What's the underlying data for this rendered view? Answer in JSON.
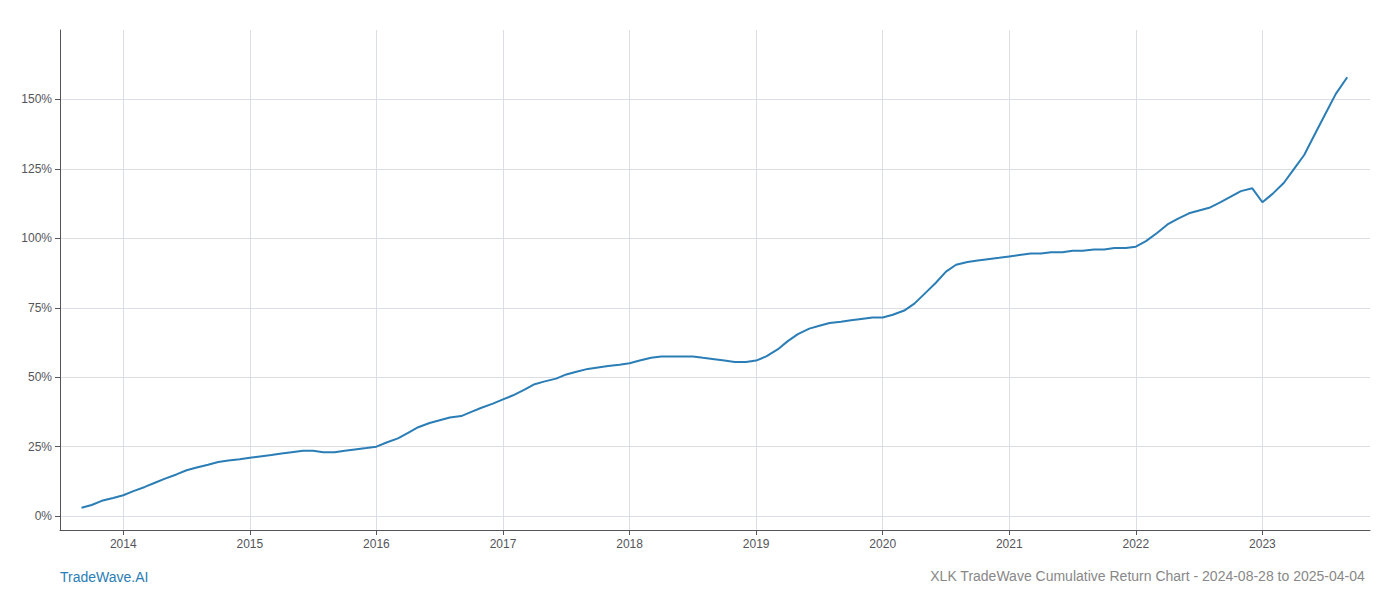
{
  "chart_data": {
    "type": "line",
    "title": "XLK TradeWave Cumulative Return Chart - 2024-08-28 to 2025-04-04",
    "annotations": [
      "TradeWave.AI"
    ],
    "color": "#2a7db5",
    "x": [
      2013.67,
      2013.75,
      2013.83,
      2013.92,
      2014.0,
      2014.08,
      2014.17,
      2014.25,
      2014.33,
      2014.42,
      2014.5,
      2014.58,
      2014.67,
      2014.75,
      2014.83,
      2014.92,
      2015.0,
      2015.08,
      2015.17,
      2015.25,
      2015.33,
      2015.42,
      2015.5,
      2015.58,
      2015.67,
      2015.75,
      2015.83,
      2015.92,
      2016.0,
      2016.08,
      2016.17,
      2016.25,
      2016.33,
      2016.42,
      2016.5,
      2016.58,
      2016.67,
      2016.75,
      2016.83,
      2016.92,
      2017.0,
      2017.08,
      2017.17,
      2017.25,
      2017.33,
      2017.42,
      2017.5,
      2017.58,
      2017.67,
      2017.75,
      2017.83,
      2017.92,
      2018.0,
      2018.08,
      2018.17,
      2018.25,
      2018.33,
      2018.42,
      2018.5,
      2018.58,
      2018.67,
      2018.75,
      2018.83,
      2018.92,
      2019.0,
      2019.08,
      2019.17,
      2019.25,
      2019.33,
      2019.42,
      2019.5,
      2019.58,
      2019.67,
      2019.75,
      2019.83,
      2019.92,
      2020.0,
      2020.08,
      2020.17,
      2020.25,
      2020.33,
      2020.42,
      2020.5,
      2020.58,
      2020.67,
      2020.75,
      2020.83,
      2020.92,
      2021.0,
      2021.08,
      2021.17,
      2021.25,
      2021.33,
      2021.42,
      2021.5,
      2021.58,
      2021.67,
      2021.75,
      2021.83,
      2021.92,
      2022.0,
      2022.08,
      2022.17,
      2022.25,
      2022.33,
      2022.42,
      2022.5,
      2022.58,
      2022.67,
      2022.75,
      2022.83,
      2022.92,
      2023.0,
      2023.08,
      2023.17,
      2023.25,
      2023.33,
      2023.42,
      2023.5,
      2023.58,
      2023.67
    ],
    "values": [
      3.0,
      4.0,
      5.5,
      6.5,
      7.5,
      9.0,
      10.5,
      12.0,
      13.5,
      15.0,
      16.5,
      17.5,
      18.5,
      19.5,
      20.0,
      20.5,
      21.0,
      21.5,
      22.0,
      22.5,
      23.0,
      23.5,
      23.5,
      23.0,
      23.0,
      23.5,
      24.0,
      24.5,
      25.0,
      26.5,
      28.0,
      30.0,
      32.0,
      33.5,
      34.5,
      35.5,
      36.0,
      37.5,
      39.0,
      40.5,
      42.0,
      43.5,
      45.5,
      47.5,
      48.5,
      49.5,
      51.0,
      52.0,
      53.0,
      53.5,
      54.0,
      54.5,
      55.0,
      56.0,
      57.0,
      57.5,
      57.5,
      57.5,
      57.5,
      57.0,
      56.5,
      56.0,
      55.5,
      55.5,
      56.0,
      57.5,
      60.0,
      63.0,
      65.5,
      67.5,
      68.5,
      69.5,
      70.0,
      70.5,
      71.0,
      71.5,
      71.5,
      72.5,
      74.0,
      76.5,
      80.0,
      84.0,
      88.0,
      90.5,
      91.5,
      92.0,
      92.5,
      93.0,
      93.5,
      94.0,
      94.5,
      94.5,
      95.0,
      95.0,
      95.5,
      95.5,
      96.0,
      96.0,
      96.5,
      96.5,
      97.0,
      99.0,
      102.0,
      105.0,
      107.0,
      109.0,
      110.0,
      111.0,
      113.0,
      115.0,
      117.0,
      118.0,
      113.0,
      116.0,
      120.0,
      125.0,
      130.0,
      138.0,
      145.0,
      152.0,
      158.0
    ],
    "xlim": [
      2013.5,
      2023.85
    ],
    "xticks": [
      2014,
      2015,
      2016,
      2017,
      2018,
      2019,
      2020,
      2021,
      2022,
      2023
    ],
    "ylim": [
      -5,
      175
    ],
    "yticks": [
      {
        "value": 0,
        "label": "0%"
      },
      {
        "value": 25,
        "label": "25%"
      },
      {
        "value": 50,
        "label": "50%"
      },
      {
        "value": 75,
        "label": "75%"
      },
      {
        "value": 100,
        "label": "100%"
      },
      {
        "value": 125,
        "label": "125%"
      },
      {
        "value": 150,
        "label": "150%"
      }
    ],
    "grid": true
  }
}
